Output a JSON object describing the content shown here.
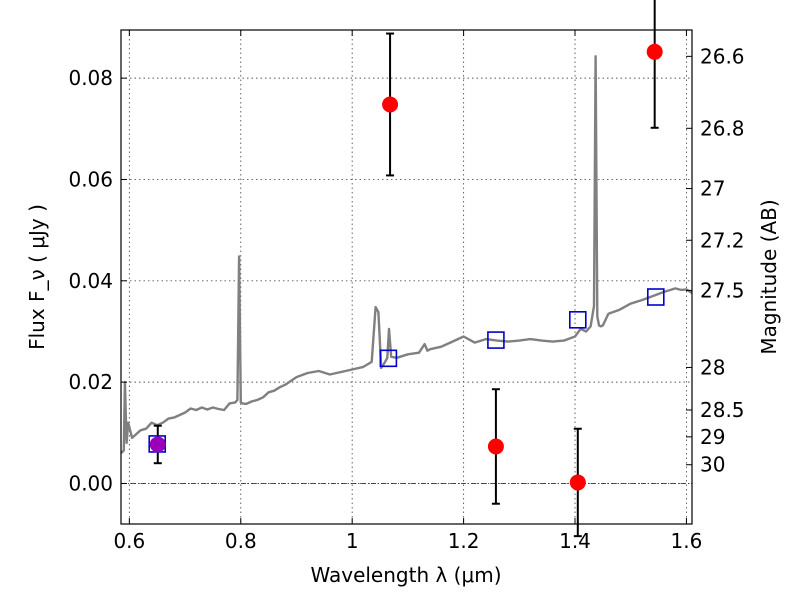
{
  "chart_data": {
    "type": "scatter",
    "xlabel": "Wavelength  λ (μm)",
    "ylabel_left": "Flux  F_ν  ( μJy )",
    "ylabel_right": "Magnitude (AB)",
    "xlim": [
      0.585,
      1.61
    ],
    "ylim": [
      -0.008,
      0.0895
    ],
    "x_ticks": [
      0.6,
      0.8,
      1.0,
      1.2,
      1.4,
      1.6
    ],
    "x_tick_labels": [
      "0.6",
      "0.8",
      "1",
      "1.2",
      "1.4",
      "1.6"
    ],
    "y_ticks": [
      0.0,
      0.02,
      0.04,
      0.06,
      0.08
    ],
    "y_tick_labels": [
      "0.00",
      "0.02",
      "0.04",
      "0.06",
      "0.08"
    ],
    "right_ticks": [
      {
        "flux": 0.0843,
        "label": "26.6"
      },
      {
        "flux": 0.0701,
        "label": "26.8"
      },
      {
        "flux": 0.0582,
        "label": "27"
      },
      {
        "flux": 0.048,
        "label": "27.2"
      },
      {
        "flux": 0.0381,
        "label": "27.5"
      },
      {
        "flux": 0.0229,
        "label": "28"
      },
      {
        "flux": 0.0145,
        "label": "28.5"
      },
      {
        "flux": 0.0092,
        "label": "29"
      },
      {
        "flux": 0.0037,
        "label": "30"
      }
    ],
    "grid": true,
    "zero_line": true,
    "colors": {
      "observed": "#ff0000",
      "model_band": "#0000cc",
      "spectrum": "#808080",
      "highlight": "#9900bb",
      "errorbar": "#000000"
    },
    "series": [
      {
        "kind": "spectrum",
        "x": [
          0.585,
          0.59,
          0.592,
          0.595,
          0.598,
          0.605,
          0.62,
          0.63,
          0.64,
          0.65,
          0.66,
          0.67,
          0.68,
          0.69,
          0.7,
          0.71,
          0.72,
          0.73,
          0.74,
          0.75,
          0.76,
          0.77,
          0.78,
          0.79,
          0.794,
          0.797,
          0.8,
          0.803,
          0.81,
          0.82,
          0.83,
          0.84,
          0.85,
          0.86,
          0.87,
          0.88,
          0.9,
          0.92,
          0.94,
          0.96,
          0.98,
          1.0,
          1.02,
          1.035,
          1.042,
          1.047,
          1.052,
          1.058,
          1.063,
          1.066,
          1.07,
          1.08,
          1.1,
          1.12,
          1.13,
          1.135,
          1.14,
          1.16,
          1.18,
          1.2,
          1.22,
          1.24,
          1.26,
          1.28,
          1.3,
          1.32,
          1.34,
          1.36,
          1.38,
          1.4,
          1.41,
          1.42,
          1.428,
          1.434,
          1.437,
          1.44,
          1.443,
          1.446,
          1.45,
          1.46,
          1.48,
          1.5,
          1.52,
          1.54,
          1.56,
          1.58,
          1.59,
          1.6,
          1.61
        ],
        "y": [
          0.006,
          0.0065,
          0.02,
          0.008,
          0.012,
          0.009,
          0.0105,
          0.0108,
          0.012,
          0.0115,
          0.012,
          0.0128,
          0.013,
          0.0135,
          0.014,
          0.0148,
          0.0145,
          0.015,
          0.0146,
          0.015,
          0.0147,
          0.0145,
          0.0158,
          0.016,
          0.0165,
          0.0448,
          0.016,
          0.0158,
          0.0157,
          0.0162,
          0.0165,
          0.017,
          0.018,
          0.0183,
          0.019,
          0.0195,
          0.021,
          0.0218,
          0.0222,
          0.0215,
          0.022,
          0.0225,
          0.023,
          0.024,
          0.0348,
          0.0338,
          0.0228,
          0.0238,
          0.0248,
          0.0305,
          0.025,
          0.0248,
          0.0255,
          0.0258,
          0.0275,
          0.0262,
          0.0265,
          0.027,
          0.028,
          0.029,
          0.0278,
          0.0285,
          0.0282,
          0.028,
          0.0282,
          0.0285,
          0.0282,
          0.028,
          0.0282,
          0.029,
          0.0305,
          0.03,
          0.031,
          0.035,
          0.0843,
          0.033,
          0.0312,
          0.031,
          0.0312,
          0.0335,
          0.0343,
          0.0355,
          0.0362,
          0.037,
          0.0378,
          0.0385,
          0.0382,
          0.0383,
          0.0376
        ]
      },
      {
        "kind": "model_band",
        "x": [
          0.65,
          1.065,
          1.258,
          1.405,
          1.545
        ],
        "y": [
          0.0078,
          0.0247,
          0.0283,
          0.0323,
          0.0368
        ]
      },
      {
        "kind": "observed",
        "x": [
          1.068,
          1.258,
          1.405,
          1.543
        ],
        "y": [
          0.0748,
          0.0073,
          0.0002,
          0.0852
        ],
        "yerr": [
          0.014,
          0.0113,
          0.0106,
          0.015
        ]
      },
      {
        "kind": "highlight",
        "x": [
          0.651
        ],
        "y": [
          0.0077
        ],
        "yerr": [
          0.0037
        ]
      }
    ]
  }
}
